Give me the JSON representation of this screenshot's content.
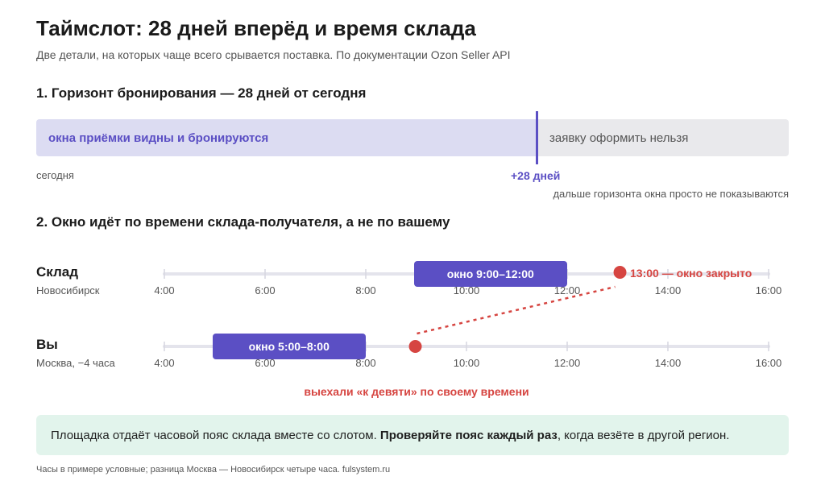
{
  "header": {
    "title": "Таймслот: 28 дней вперёд и время склада",
    "subtitle": "Две детали, на которых чаще всего срывается поставка. По документации Ozon Seller API"
  },
  "section1": {
    "title": "1. Горизонт бронирования — 28 дней от сегодня",
    "visible_label": "окна приёмки видны и бронируются",
    "hidden_label": "заявку оформить нельзя",
    "today_label": "сегодня",
    "horizon_label": "+28 дней",
    "horizon_days": 28,
    "horizon_note": "дальше горизонта окна просто не показываются"
  },
  "section2": {
    "title": "2. Окно идёт по времени склада-получателя, а не по вашему",
    "warehouse": {
      "name": "Склад",
      "city": "Новосибирск",
      "window_label": "окно 9:00–12:00",
      "window_start_hour": 9,
      "window_end_hour": 12,
      "arrival_hour": 13,
      "arrival_label": "13:00 — окно закрыто"
    },
    "you": {
      "name": "Вы",
      "city": "Москва, −4 часа",
      "window_label": "окно 5:00–8:00",
      "window_start_hour": 5,
      "window_end_hour": 8,
      "departure_hour": 9
    },
    "ticks": [
      "4:00",
      "6:00",
      "8:00",
      "10:00",
      "12:00",
      "14:00",
      "16:00"
    ],
    "tick_hours": [
      4,
      6,
      8,
      10,
      12,
      14,
      16
    ],
    "departure_label": "выехали «к девяти» по своему времени"
  },
  "callout": {
    "before": "Площадка отдаёт часовой пояс склада вместе со слотом. ",
    "bold": "Проверяйте пояс каждый раз",
    "after": ", когда везёте в другой регион."
  },
  "footer": "Часы в примере условные; разница Москва — Новосибирск четыре часа. fulsystem.ru",
  "colors": {
    "accent": "#5b4fc4",
    "alert": "#d64541",
    "axis": "#e4e4ec",
    "visible_bg": "#dcdcf2",
    "hidden_bg": "#e9e9ec",
    "callout_bg": "#e2f4ec"
  }
}
